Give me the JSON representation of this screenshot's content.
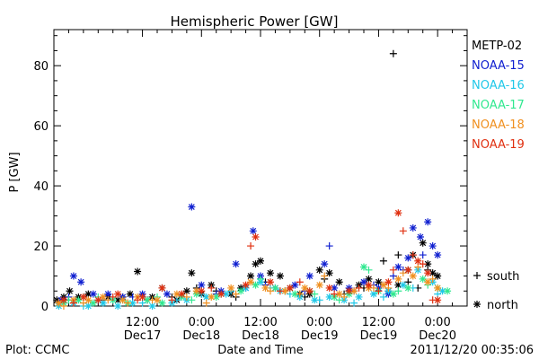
{
  "chart_data": {
    "type": "scatter",
    "title": "Hemispheric Power [GW]",
    "xlabel": "Date and Time",
    "ylabel": "P [GW]",
    "ylim": [
      0,
      92
    ],
    "xlim_hours": [
      -6,
      78
    ],
    "y_ticks": [
      0,
      20,
      40,
      60,
      80
    ],
    "x_ticks": [
      {
        "h": 12,
        "time": "12:00",
        "day": "Dec17"
      },
      {
        "h": 24,
        "time": "0:00",
        "day": "Dec18"
      },
      {
        "h": 36,
        "time": "12:00",
        "day": "Dec18"
      },
      {
        "h": 48,
        "time": "0:00",
        "day": "Dec19"
      },
      {
        "h": 60,
        "time": "12:00",
        "day": "Dec19"
      },
      {
        "h": 72,
        "time": "0:00",
        "day": "Dec20"
      }
    ],
    "footer_left": "Plot: CCMC",
    "footer_right": "2011/12/20 00:35:06",
    "legend": {
      "placement": "right",
      "markers": [
        {
          "symbol": "+",
          "label": "south"
        },
        {
          "symbol": "*",
          "label": "north"
        }
      ]
    },
    "series": [
      {
        "name": "METP-02",
        "color": "#000000",
        "north": [
          [
            -5.4,
            2
          ],
          [
            -4,
            3
          ],
          [
            -2.8,
            5
          ],
          [
            -1,
            3
          ],
          [
            1,
            4
          ],
          [
            5,
            3
          ],
          [
            7,
            2
          ],
          [
            9.5,
            4
          ],
          [
            11,
            11.5
          ],
          [
            14,
            3
          ],
          [
            16,
            6
          ],
          [
            19,
            2
          ],
          [
            21,
            5
          ],
          [
            22,
            11
          ],
          [
            24,
            4
          ],
          [
            26,
            7
          ],
          [
            30,
            4
          ],
          [
            32,
            6
          ],
          [
            34,
            10
          ],
          [
            35,
            14
          ],
          [
            36,
            15
          ],
          [
            38,
            11
          ],
          [
            40,
            10
          ],
          [
            42,
            6
          ],
          [
            44,
            4
          ],
          [
            46,
            4
          ],
          [
            48,
            12
          ],
          [
            50,
            11
          ],
          [
            52,
            8
          ],
          [
            54,
            5
          ],
          [
            56,
            7
          ],
          [
            58,
            9
          ],
          [
            60,
            8
          ],
          [
            62,
            5
          ],
          [
            64,
            7
          ],
          [
            66,
            12
          ],
          [
            67,
            17
          ],
          [
            69,
            21
          ],
          [
            70,
            14
          ],
          [
            71,
            11
          ],
          [
            72,
            10
          ]
        ],
        "south": [
          [
            -5,
            1
          ],
          [
            -3,
            2
          ],
          [
            0,
            3
          ],
          [
            4,
            2
          ],
          [
            8,
            3
          ],
          [
            13,
            2
          ],
          [
            18,
            3
          ],
          [
            23,
            6
          ],
          [
            27,
            5
          ],
          [
            31,
            3
          ],
          [
            37,
            8
          ],
          [
            41,
            5
          ],
          [
            45,
            3
          ],
          [
            49,
            9
          ],
          [
            53,
            4
          ],
          [
            57,
            6
          ],
          [
            61,
            15
          ],
          [
            63,
            84
          ],
          [
            64,
            17
          ],
          [
            66,
            8
          ],
          [
            68,
            6
          ],
          [
            70,
            12
          ]
        ]
      },
      {
        "name": "NOAA-15",
        "color": "#1020d0",
        "north": [
          [
            -4.5,
            2
          ],
          [
            -2,
            10
          ],
          [
            -0.5,
            8
          ],
          [
            2,
            4
          ],
          [
            5,
            4
          ],
          [
            8,
            3
          ],
          [
            12,
            4
          ],
          [
            17,
            4
          ],
          [
            22,
            33
          ],
          [
            24,
            7
          ],
          [
            28,
            5
          ],
          [
            31,
            14
          ],
          [
            33,
            6
          ],
          [
            34.5,
            25
          ],
          [
            36,
            10
          ],
          [
            39,
            6
          ],
          [
            43,
            7
          ],
          [
            46,
            10
          ],
          [
            49,
            14
          ],
          [
            51,
            6
          ],
          [
            54,
            6
          ],
          [
            57,
            8
          ],
          [
            60,
            6
          ],
          [
            62,
            4
          ],
          [
            64,
            13
          ],
          [
            66,
            16
          ],
          [
            67,
            26
          ],
          [
            68.5,
            23
          ],
          [
            70,
            28
          ],
          [
            71,
            20
          ],
          [
            72,
            17
          ]
        ],
        "south": [
          [
            -3,
            3
          ],
          [
            3,
            2
          ],
          [
            10,
            3
          ],
          [
            20,
            3
          ],
          [
            27,
            4
          ],
          [
            37,
            7
          ],
          [
            45,
            5
          ],
          [
            50,
            20
          ],
          [
            55,
            5
          ],
          [
            59,
            7
          ],
          [
            63,
            10
          ],
          [
            65,
            12
          ],
          [
            69,
            17
          ]
        ]
      },
      {
        "name": "NOAA-16",
        "color": "#20c8e8",
        "north": [
          [
            -5,
            0
          ],
          [
            -2,
            1
          ],
          [
            1,
            0
          ],
          [
            4,
            1
          ],
          [
            7,
            0
          ],
          [
            10,
            1
          ],
          [
            14,
            0
          ],
          [
            18,
            1
          ],
          [
            21,
            2
          ],
          [
            25,
            3
          ],
          [
            29,
            4
          ],
          [
            33,
            6
          ],
          [
            36,
            8
          ],
          [
            40,
            5
          ],
          [
            44,
            3
          ],
          [
            47,
            2
          ],
          [
            50,
            3
          ],
          [
            53,
            2
          ],
          [
            56,
            3
          ],
          [
            59,
            4
          ],
          [
            62,
            5
          ],
          [
            65,
            7
          ],
          [
            68,
            12
          ],
          [
            71,
            8
          ],
          [
            73,
            5
          ]
        ],
        "south": [
          [
            -4,
            1
          ],
          [
            0,
            0
          ],
          [
            6,
            2
          ],
          [
            12,
            1
          ],
          [
            19,
            2
          ],
          [
            24,
            4
          ],
          [
            30,
            5
          ],
          [
            38,
            6
          ],
          [
            42,
            4
          ],
          [
            48,
            2
          ],
          [
            55,
            1
          ],
          [
            61,
            3
          ],
          [
            67,
            6
          ],
          [
            72,
            4
          ]
        ]
      },
      {
        "name": "NOAA-17",
        "color": "#30e890",
        "north": [
          [
            -4,
            1
          ],
          [
            -1,
            2
          ],
          [
            2,
            1
          ],
          [
            6,
            2
          ],
          [
            9,
            1
          ],
          [
            13,
            2
          ],
          [
            16,
            1
          ],
          [
            20,
            3
          ],
          [
            23,
            4
          ],
          [
            27,
            3
          ],
          [
            32,
            5
          ],
          [
            35,
            7
          ],
          [
            39,
            6
          ],
          [
            43,
            4
          ],
          [
            46,
            5
          ],
          [
            51,
            3
          ],
          [
            54,
            4
          ],
          [
            57,
            13
          ],
          [
            60,
            5
          ],
          [
            63,
            4
          ],
          [
            66,
            6
          ],
          [
            69,
            9
          ],
          [
            72,
            6
          ],
          [
            74,
            5
          ]
        ],
        "south": [
          [
            -3,
            2
          ],
          [
            3,
            3
          ],
          [
            8,
            2
          ],
          [
            15,
            3
          ],
          [
            22,
            2
          ],
          [
            28,
            4
          ],
          [
            36,
            9
          ],
          [
            41,
            5
          ],
          [
            47,
            4
          ],
          [
            52,
            2
          ],
          [
            58,
            12
          ],
          [
            64,
            5
          ],
          [
            70,
            7
          ]
        ]
      },
      {
        "name": "NOAA-18",
        "color": "#f09020",
        "north": [
          [
            -5,
            1
          ],
          [
            -2,
            2
          ],
          [
            1,
            2
          ],
          [
            4,
            3
          ],
          [
            8,
            2
          ],
          [
            11,
            3
          ],
          [
            15,
            2
          ],
          [
            19,
            4
          ],
          [
            23,
            5
          ],
          [
            26,
            3
          ],
          [
            30,
            6
          ],
          [
            34,
            8
          ],
          [
            37,
            6
          ],
          [
            41,
            5
          ],
          [
            45,
            6
          ],
          [
            48,
            7
          ],
          [
            52,
            4
          ],
          [
            55,
            5
          ],
          [
            58,
            6
          ],
          [
            61,
            7
          ],
          [
            64,
            9
          ],
          [
            67,
            10
          ],
          [
            70,
            8
          ],
          [
            72,
            6
          ]
        ],
        "south": [
          [
            -4,
            0
          ],
          [
            0,
            1
          ],
          [
            5,
            2
          ],
          [
            9,
            1
          ],
          [
            14,
            2
          ],
          [
            21,
            3
          ],
          [
            25,
            1
          ],
          [
            31,
            4
          ],
          [
            38,
            5
          ],
          [
            44,
            4
          ],
          [
            49,
            10
          ],
          [
            53,
            3
          ],
          [
            59,
            6
          ],
          [
            62,
            6
          ],
          [
            65,
            11
          ],
          [
            68,
            13
          ],
          [
            71,
            9
          ]
        ]
      },
      {
        "name": "NOAA-19",
        "color": "#e03010",
        "north": [
          [
            -4,
            2
          ],
          [
            0,
            3
          ],
          [
            3,
            2
          ],
          [
            7,
            4
          ],
          [
            12,
            3
          ],
          [
            16,
            6
          ],
          [
            20,
            4
          ],
          [
            24,
            5
          ],
          [
            28,
            4
          ],
          [
            33,
            7
          ],
          [
            35,
            23
          ],
          [
            38,
            8
          ],
          [
            42,
            6
          ],
          [
            46,
            5
          ],
          [
            50,
            6
          ],
          [
            54,
            5
          ],
          [
            58,
            7
          ],
          [
            62,
            8
          ],
          [
            64,
            31
          ],
          [
            66,
            12
          ],
          [
            68,
            15
          ],
          [
            70,
            11
          ],
          [
            72,
            2
          ]
        ],
        "south": [
          [
            -2,
            1
          ],
          [
            6,
            3
          ],
          [
            11,
            2
          ],
          [
            18,
            2
          ],
          [
            26,
            6
          ],
          [
            34,
            20
          ],
          [
            40,
            5
          ],
          [
            44,
            8
          ],
          [
            51,
            4
          ],
          [
            56,
            6
          ],
          [
            60,
            5
          ],
          [
            63,
            12
          ],
          [
            65,
            25
          ],
          [
            67,
            17
          ],
          [
            69,
            14
          ],
          [
            71,
            2
          ]
        ]
      }
    ]
  }
}
